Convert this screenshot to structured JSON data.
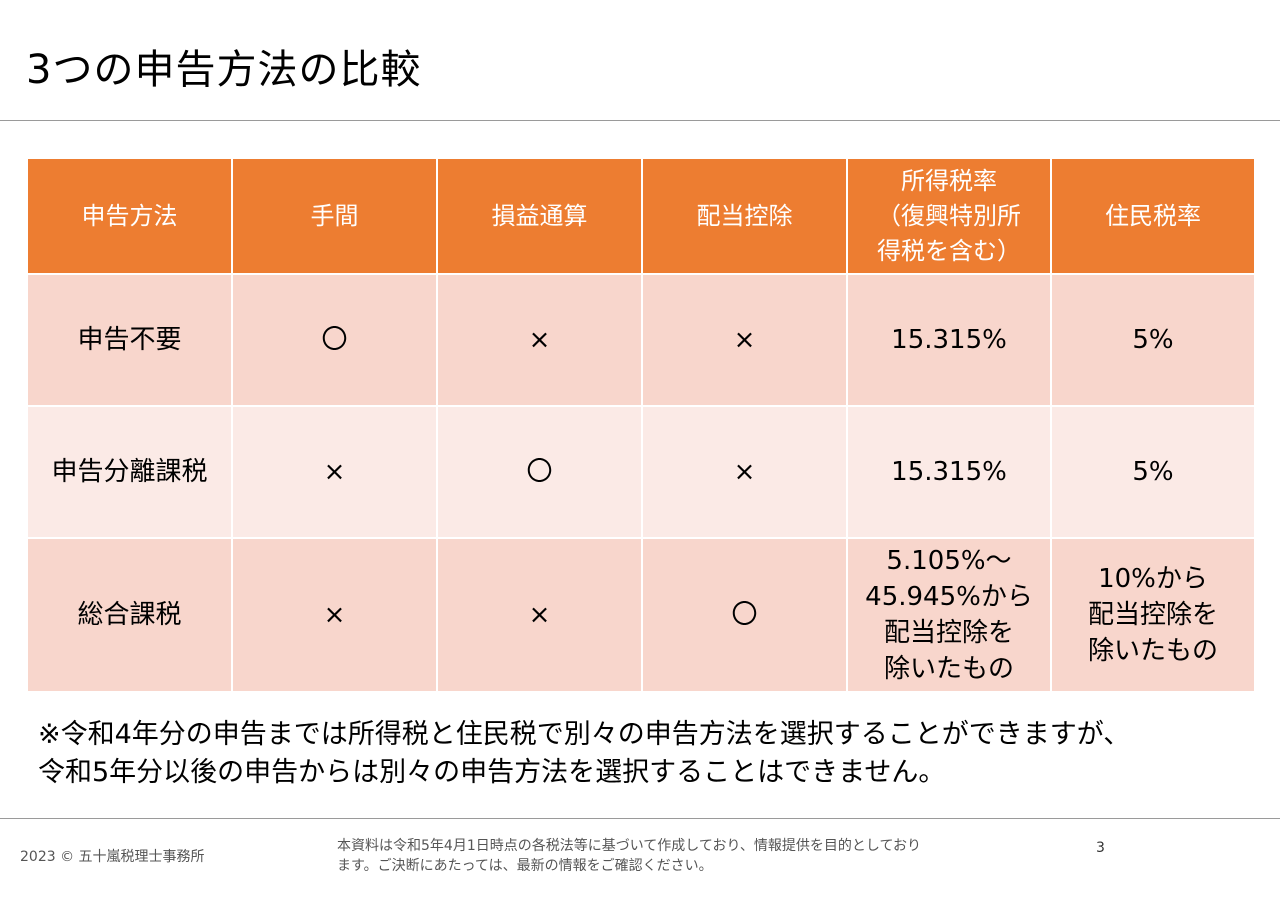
{
  "slide": {
    "title": "3つの申告方法の比較",
    "page_number": "3"
  },
  "table": {
    "headers": [
      "申告方法",
      "手間",
      "損益通算",
      "配当控除",
      "所得税率\n（復興特別所\n得税を含む）",
      "住民税率"
    ],
    "rows": [
      [
        "申告不要",
        "〇",
        "×",
        "×",
        "15.315%",
        "5%"
      ],
      [
        "申告分離課税",
        "×",
        "〇",
        "×",
        "15.315%",
        "5%"
      ],
      [
        "総合課税",
        "×",
        "×",
        "〇",
        "5.105%～\n45.945%から\n配当控除を\n除いたもの",
        "10%から\n配当控除を\n除いたもの"
      ]
    ]
  },
  "note": {
    "line1": "※令和4年分の申告までは所得税と住民税で別々の申告方法を選択することができますが、",
    "line2": "令和5年分以後の申告からは別々の申告方法を選択することはできません。"
  },
  "footer": {
    "copyright": "2023 © 五十嵐税理士事務所",
    "disclaimer_line1": "本資料は令和5年4月1日時点の各税法等に基づいて作成しており、情報提供を目的としており",
    "disclaimer_line2": "ます。ご決断にあたっては、最新の情報をご確認ください。"
  }
}
